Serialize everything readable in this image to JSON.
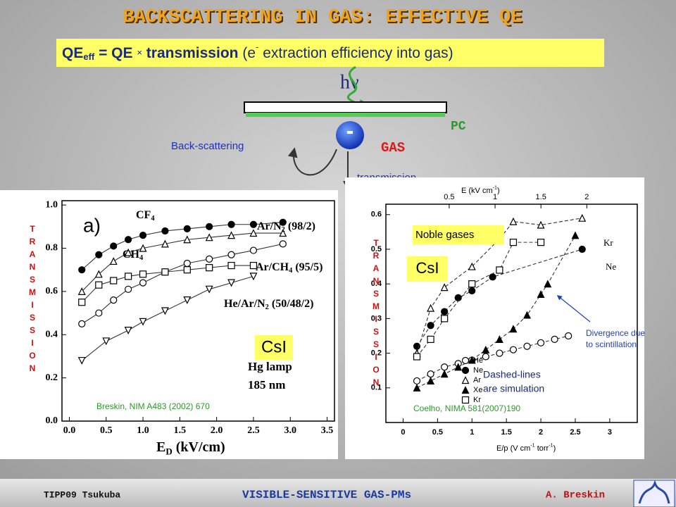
{
  "header": {
    "title": "BACKSCATTERING IN GAS: EFFECTIVE QE"
  },
  "formula": {
    "text": "QE",
    "sub": "eff",
    "mid": " = QE ",
    "times": "×",
    "bold": " transmission ",
    "paren": "(e",
    "sup": "-",
    "rest": " extraction efficiency into gas)"
  },
  "diagram": {
    "photon": "hν",
    "electron": "-",
    "cathode": "PC",
    "gas": "GAS",
    "backscatter": "Back-scattering",
    "transmission": "transmission"
  },
  "chart_data": [
    {
      "type": "scatter",
      "y_label": "TRANSMISSION",
      "panel": "a)",
      "x_label": {
        "text": "E",
        "sub": "D",
        "after": " (kV/cm)"
      },
      "xlim": [
        -0.1,
        3.6
      ],
      "ylim": [
        0,
        1.02
      ],
      "xticks": [
        {
          "value": 0,
          "label": "0.0"
        },
        0.5,
        {
          "value": 1,
          "label": "1.0"
        },
        1.5,
        {
          "value": 2,
          "label": "2.0"
        },
        2.5,
        {
          "value": 3,
          "label": "3.0"
        },
        3.5
      ],
      "yticks": [
        {
          "value": 0,
          "label": "0.0"
        },
        0.2,
        0.4,
        0.6,
        0.8,
        {
          "value": 1,
          "label": "1.0"
        }
      ],
      "line_style": "solid",
      "series": [
        {
          "name": {
            "text": "CF",
            "sub": "4"
          },
          "marker": "circle-filled",
          "x": [
            0.17,
            0.4,
            0.6,
            0.8,
            1.0,
            1.3,
            1.6,
            1.9,
            2.2,
            2.5,
            2.9
          ],
          "values": [
            0.7,
            0.77,
            0.81,
            0.84,
            0.86,
            0.88,
            0.89,
            0.9,
            0.91,
            0.91,
            0.92
          ]
        },
        {
          "name": {
            "text": "CH",
            "sub": "4"
          },
          "marker": "triangle-open",
          "x": [
            0.17,
            0.4,
            0.6,
            0.8,
            1.0,
            1.3,
            1.6,
            1.9,
            2.2,
            2.5,
            2.9
          ],
          "values": [
            0.6,
            0.68,
            0.74,
            0.78,
            0.8,
            0.82,
            0.84,
            0.85,
            0.86,
            0.87,
            0.87
          ]
        },
        {
          "name": {
            "text": "Ar/N",
            "sub": "2",
            "after": " (98/2)"
          },
          "marker": "circle-open",
          "x": [
            0.17,
            0.4,
            0.6,
            0.8,
            1.0,
            1.3,
            1.6,
            1.9,
            2.2,
            2.5,
            2.9
          ],
          "values": [
            0.45,
            0.5,
            0.56,
            0.61,
            0.64,
            0.69,
            0.73,
            0.75,
            0.77,
            0.79,
            0.82
          ]
        },
        {
          "name": {
            "text": "Ar/CH",
            "sub": "4",
            "after": " (95/5)"
          },
          "marker": "square-open",
          "x": [
            0.17,
            0.4,
            0.6,
            0.8,
            1.0,
            1.3,
            1.6,
            1.9,
            2.2,
            2.5
          ],
          "values": [
            0.55,
            0.63,
            0.65,
            0.67,
            0.68,
            0.69,
            0.7,
            0.71,
            0.72,
            0.72
          ]
        },
        {
          "name": {
            "text": "He/Ar/N",
            "sub": "2",
            "after": " (50/48/2)"
          },
          "marker": "triangle-down-open",
          "x": [
            0.17,
            0.5,
            0.8,
            1.0,
            1.3,
            1.6,
            1.9,
            2.2,
            2.5
          ],
          "values": [
            0.28,
            0.37,
            0.42,
            0.46,
            0.51,
            0.56,
            0.61,
            0.64,
            0.67
          ]
        }
      ],
      "annotations": [
        "Hg lamp",
        "185 nm"
      ],
      "material": "CsI",
      "source": "Breskin, NIM A483 (2002) 670"
    },
    {
      "type": "scatter",
      "y_label": "TRANSMISSION",
      "x_label": {
        "text": "E/p (V cm",
        "sup": "-1",
        "after": " torr",
        "sup2": "-1",
        "after2": ")"
      },
      "x2_label": {
        "text": "E (kV cm",
        "sup": "-1",
        "after": ")"
      },
      "xlim": [
        -0.25,
        3.4
      ],
      "ylim": [
        0,
        0.63
      ],
      "x2lim": [
        -0.19,
        2.55
      ],
      "xticks": [
        0,
        0.5,
        1,
        1.5,
        2,
        2.5,
        3
      ],
      "x2ticks": [
        0.5,
        1,
        1.5,
        2
      ],
      "yticks": [
        0.1,
        0.2,
        0.3,
        0.4,
        0.5,
        0.6
      ],
      "line_style": "dashed",
      "legend": "bottom",
      "series": [
        {
          "name": "He",
          "marker": "circle-open",
          "x": [
            0.2,
            0.4,
            0.6,
            0.8,
            1.0,
            1.2,
            1.4,
            1.6,
            1.8,
            2.0,
            2.2,
            2.4
          ],
          "values": [
            0.12,
            0.14,
            0.16,
            0.17,
            0.18,
            0.19,
            0.2,
            0.21,
            0.22,
            0.23,
            0.24,
            0.25
          ]
        },
        {
          "name": "Ne",
          "marker": "circle-filled",
          "x": [
            0.2,
            0.4,
            0.6,
            0.8,
            1.0,
            1.3,
            2.6
          ],
          "values": [
            0.22,
            0.28,
            0.32,
            0.36,
            0.38,
            0.42,
            0.5
          ]
        },
        {
          "name": "Ar",
          "marker": "triangle-open",
          "x": [
            0.2,
            0.4,
            0.6,
            1.0,
            1.4,
            1.6,
            2.0,
            2.6
          ],
          "values": [
            0.2,
            0.33,
            0.39,
            0.45,
            0.53,
            0.58,
            0.57,
            0.59
          ]
        },
        {
          "name": "Xe",
          "marker": "triangle-filled",
          "x": [
            0.2,
            0.4,
            0.6,
            0.8,
            1.0,
            1.2,
            1.4,
            1.6,
            1.8,
            2.0,
            2.1,
            2.5
          ],
          "values": [
            0.1,
            0.12,
            0.14,
            0.16,
            0.18,
            0.21,
            0.24,
            0.27,
            0.31,
            0.37,
            0.4,
            0.54
          ]
        },
        {
          "name": "Kr",
          "marker": "square-open",
          "x": [
            0.2,
            0.4,
            0.6,
            1.0,
            1.4,
            1.6,
            2.0
          ],
          "values": [
            0.19,
            0.24,
            0.3,
            0.4,
            0.44,
            0.52,
            0.52
          ]
        }
      ],
      "curve_labels": [
        "Kr",
        "Ne"
      ],
      "annotations": [
        "Noble gases"
      ],
      "material": "CsI",
      "note": [
        "Divergence due",
        "to scintillation"
      ],
      "simulation": [
        "Dashed-lines",
        "are simulation"
      ],
      "source": "Coelho, NIMA 581(2007)190"
    }
  ],
  "footer": {
    "conference": "TIPP09 Tsukuba",
    "topic": "VISIBLE-SENSITIVE GAS-PMs",
    "author": "A. Breskin"
  }
}
